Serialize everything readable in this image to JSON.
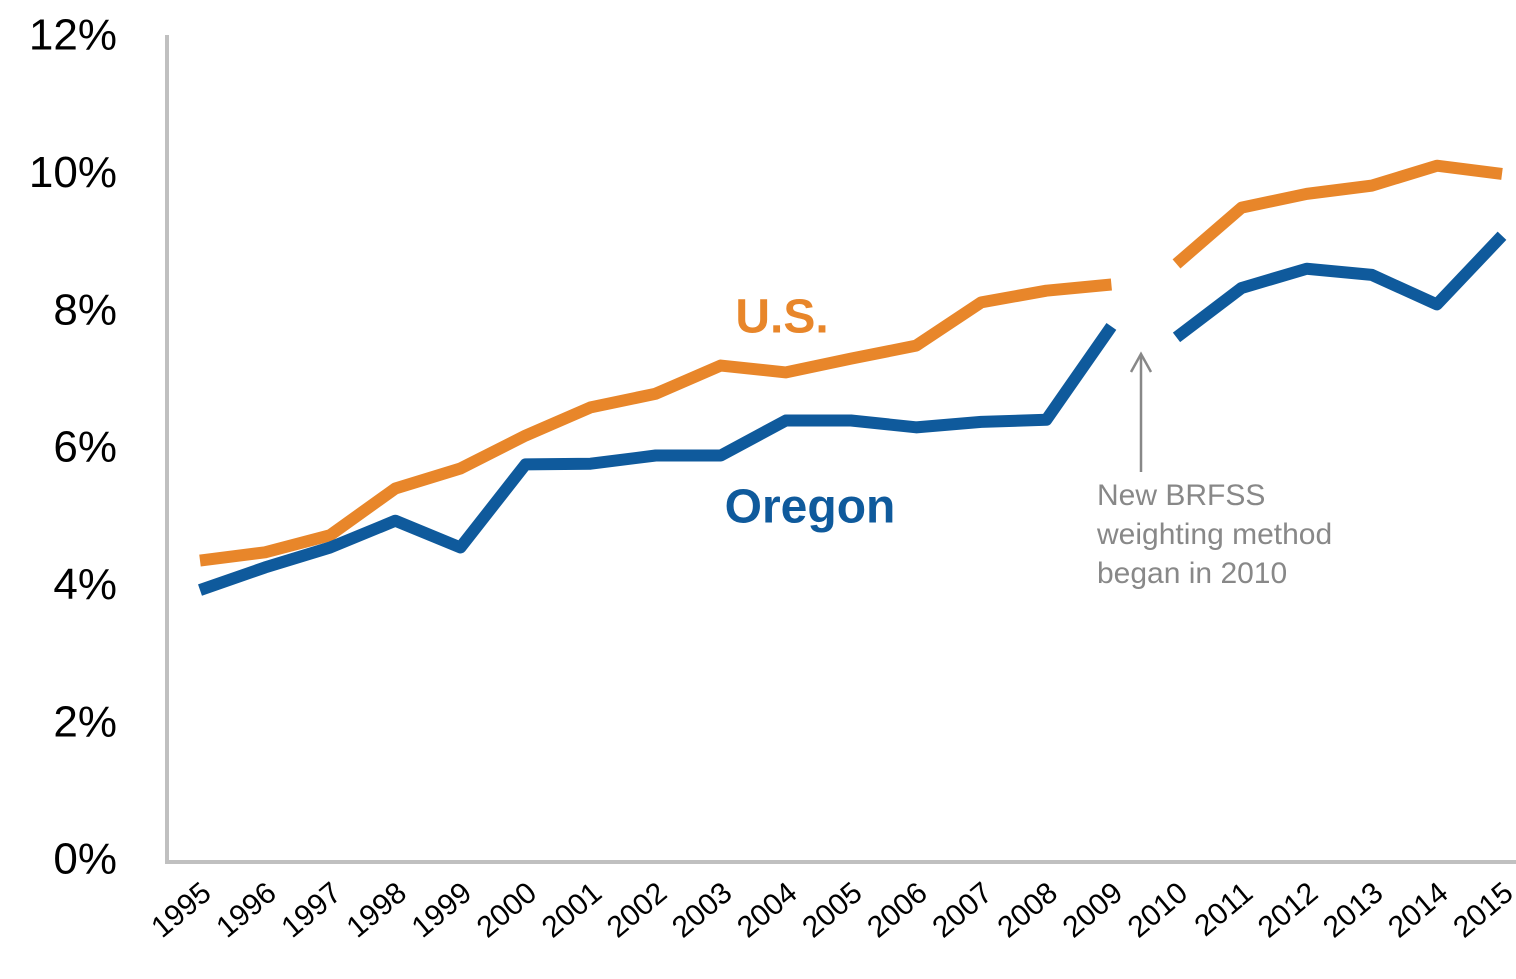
{
  "chart_data": {
    "type": "line",
    "categories": [
      "1995",
      "1996",
      "1997",
      "1998",
      "1999",
      "2000",
      "2001",
      "2002",
      "2003",
      "2004",
      "2005",
      "2006",
      "2007",
      "2008",
      "2009",
      "2010",
      "2011",
      "2012",
      "2013",
      "2014",
      "2015"
    ],
    "series": [
      {
        "name": "U.S.",
        "color": "#e8862a",
        "values": [
          4.39,
          4.51,
          4.76,
          5.44,
          5.73,
          6.21,
          6.62,
          6.82,
          7.23,
          7.13,
          7.33,
          7.52,
          8.15,
          8.32,
          8.41,
          8.71,
          9.53,
          9.73,
          9.85,
          10.14,
          10.02
        ]
      },
      {
        "name": "Oregon",
        "color": "#0f5a9c",
        "values": [
          3.96,
          4.29,
          4.58,
          4.97,
          4.58,
          5.79,
          5.8,
          5.92,
          5.92,
          6.43,
          6.43,
          6.33,
          6.41,
          6.44,
          7.8,
          7.64,
          8.36,
          8.64,
          8.55,
          8.12,
          9.12
        ]
      }
    ],
    "line_break_before": "2010",
    "annotation": [
      "New BRFSS",
      "weighting method",
      "began in 2010"
    ],
    "ylim": [
      0,
      12
    ],
    "yticks": [
      {
        "value": 0,
        "label": "0%"
      },
      {
        "value": 2,
        "label": "2%"
      },
      {
        "value": 4,
        "label": "4%"
      },
      {
        "value": 6,
        "label": "6%"
      },
      {
        "value": 8,
        "label": "8%"
      },
      {
        "value": 10,
        "label": "10%"
      },
      {
        "value": 12,
        "label": "12%"
      }
    ],
    "grid": false
  }
}
